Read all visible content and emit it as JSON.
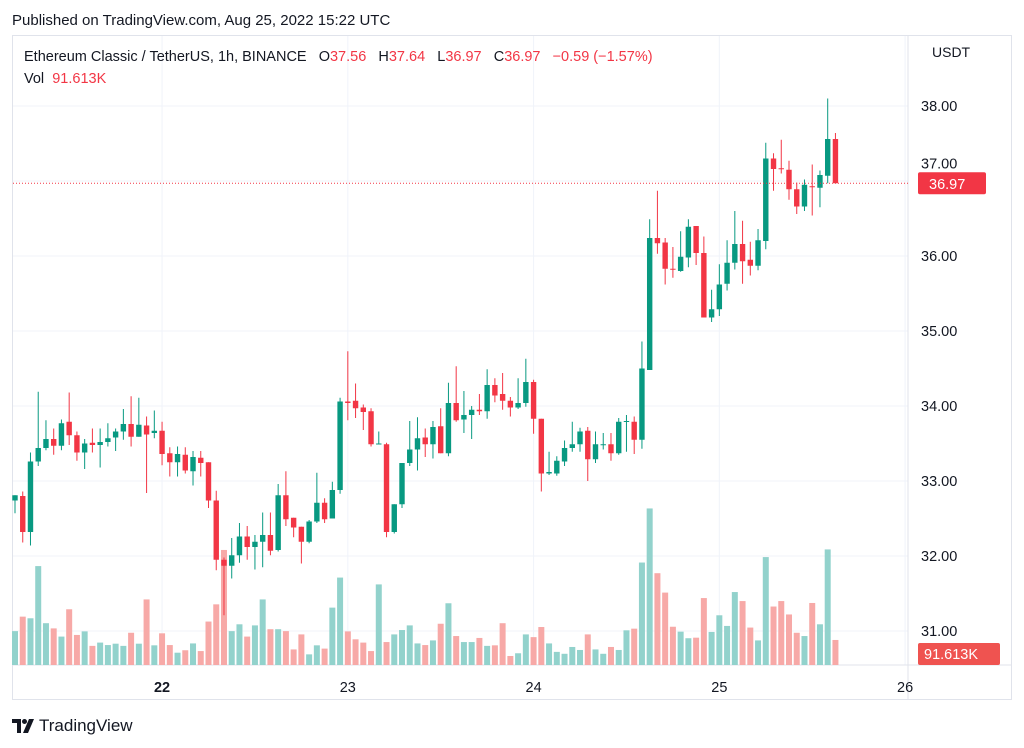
{
  "published": "Published on TradingView.com, Aug 25, 2022 15:22 UTC",
  "legend": {
    "symbol": "Ethereum Classic / TetherUS, 1h, BINANCE",
    "o_label": "O",
    "o": "37.56",
    "h_label": "H",
    "h": "37.64",
    "l_label": "L",
    "l": "36.97",
    "c_label": "C",
    "c": "36.97",
    "change": "−0.59 (−1.57%)",
    "vol_label": "Vol",
    "vol": "91.613K"
  },
  "footer": {
    "brand": "TradingView"
  },
  "chart_data": {
    "type": "candlestick",
    "title": "Ethereum Classic / TetherUS, 1h, BINANCE",
    "currency": "USDT",
    "ylim": [
      30.8,
      38.5
    ],
    "y_ticks": [
      "38.00",
      "37.00",
      "36.00",
      "35.00",
      "34.00",
      "33.00",
      "32.00",
      "31.00"
    ],
    "y_tick_values": [
      38,
      37,
      36,
      35,
      34,
      33,
      32,
      31
    ],
    "x_ticks": [
      {
        "label": "22",
        "bold": true
      },
      {
        "label": "23"
      },
      {
        "label": "24"
      },
      {
        "label": "25"
      },
      {
        "label": "26"
      }
    ],
    "interval": "1h",
    "grid": true,
    "last_price": "36.97",
    "last_volume": "91.613K",
    "colors": {
      "up": "#089981",
      "down": "#f23645",
      "vol_up": "#92d2cc",
      "vol_down": "#f7a9a7",
      "last_line": "#f23645"
    },
    "candles_ohlc": [
      [
        32.74,
        32.81,
        32.57,
        32.81
      ],
      [
        32.8,
        32.86,
        32.18,
        32.32
      ],
      [
        32.32,
        33.38,
        32.14,
        33.26
      ],
      [
        33.26,
        34.19,
        33.2,
        33.44
      ],
      [
        33.44,
        33.81,
        33.41,
        33.56
      ],
      [
        33.56,
        33.7,
        33.35,
        33.47
      ],
      [
        33.47,
        33.82,
        33.41,
        33.77
      ],
      [
        33.79,
        34.18,
        33.48,
        33.61
      ],
      [
        33.61,
        33.66,
        33.27,
        33.38
      ],
      [
        33.38,
        33.56,
        33.16,
        33.5
      ],
      [
        33.51,
        33.7,
        33.38,
        33.48
      ],
      [
        33.48,
        33.7,
        33.18,
        33.52
      ],
      [
        33.52,
        33.77,
        33.46,
        33.57
      ],
      [
        33.58,
        33.7,
        33.4,
        33.66
      ],
      [
        33.66,
        33.96,
        33.55,
        33.76
      ],
      [
        33.76,
        34.13,
        33.46,
        33.59
      ],
      [
        33.59,
        34.11,
        33.59,
        33.75
      ],
      [
        33.74,
        33.86,
        32.84,
        33.62
      ],
      [
        33.64,
        33.94,
        33.57,
        33.67
      ],
      [
        33.67,
        33.79,
        33.21,
        33.36
      ],
      [
        33.37,
        33.45,
        33.06,
        33.25
      ],
      [
        33.25,
        33.46,
        33.06,
        33.36
      ],
      [
        33.35,
        33.45,
        33.1,
        33.14
      ],
      [
        33.13,
        33.4,
        32.94,
        33.32
      ],
      [
        33.31,
        33.4,
        33.06,
        33.24
      ],
      [
        33.25,
        33.25,
        32.64,
        32.74
      ],
      [
        32.74,
        32.87,
        31.81,
        31.95
      ],
      [
        31.95,
        31.98,
        31.21,
        31.87
      ],
      [
        31.87,
        32.24,
        31.7,
        32.01
      ],
      [
        32.01,
        32.44,
        31.91,
        32.26
      ],
      [
        32.26,
        32.4,
        31.95,
        32.12
      ],
      [
        32.12,
        32.28,
        31.82,
        32.19
      ],
      [
        32.19,
        32.58,
        31.85,
        32.28
      ],
      [
        32.28,
        32.58,
        32.01,
        32.07
      ],
      [
        32.08,
        32.96,
        32.06,
        32.81
      ],
      [
        32.81,
        33.13,
        32.4,
        32.49
      ],
      [
        32.51,
        32.51,
        32.25,
        32.38
      ],
      [
        32.39,
        32.39,
        31.9,
        32.19
      ],
      [
        32.19,
        32.48,
        32.17,
        32.46
      ],
      [
        32.46,
        33.11,
        32.44,
        32.71
      ],
      [
        32.71,
        32.77,
        32.44,
        32.49
      ],
      [
        32.5,
        32.99,
        32.83,
        32.88
      ],
      [
        32.88,
        34.11,
        32.83,
        34.06
      ],
      [
        34.06,
        34.73,
        33.81,
        34.04
      ],
      [
        34.07,
        34.3,
        33.84,
        33.97
      ],
      [
        33.98,
        34.02,
        33.68,
        33.92
      ],
      [
        33.93,
        33.97,
        33.46,
        33.49
      ],
      [
        33.49,
        33.66,
        33.49,
        33.5
      ],
      [
        33.49,
        33.51,
        32.25,
        32.32
      ],
      [
        32.32,
        32.69,
        32.3,
        32.69
      ],
      [
        32.69,
        33.24,
        32.64,
        33.24
      ],
      [
        33.24,
        33.8,
        33.2,
        33.42
      ],
      [
        33.42,
        33.85,
        33.14,
        33.57
      ],
      [
        33.58,
        33.7,
        33.32,
        33.49
      ],
      [
        33.49,
        33.8,
        33.3,
        33.72
      ],
      [
        33.73,
        33.97,
        33.37,
        33.37
      ],
      [
        33.37,
        34.31,
        33.33,
        34.04
      ],
      [
        34.04,
        34.53,
        33.79,
        33.81
      ],
      [
        33.82,
        34.2,
        33.64,
        33.88
      ],
      [
        33.88,
        34.0,
        33.56,
        33.95
      ],
      [
        33.95,
        34.16,
        33.88,
        33.93
      ],
      [
        33.93,
        34.49,
        33.83,
        34.28
      ],
      [
        34.28,
        34.37,
        34.05,
        34.14
      ],
      [
        34.16,
        34.44,
        33.95,
        34.07
      ],
      [
        34.07,
        34.12,
        33.86,
        33.98
      ],
      [
        33.98,
        34.37,
        33.96,
        34.04
      ],
      [
        34.04,
        34.63,
        33.99,
        34.32
      ],
      [
        34.32,
        34.35,
        33.63,
        33.83
      ],
      [
        33.83,
        33.83,
        32.86,
        33.1
      ],
      [
        33.1,
        33.39,
        33.08,
        33.12
      ],
      [
        33.1,
        33.33,
        33.07,
        33.27
      ],
      [
        33.26,
        33.54,
        33.2,
        33.44
      ],
      [
        33.44,
        33.79,
        33.39,
        33.49
      ],
      [
        33.49,
        33.71,
        33.39,
        33.66
      ],
      [
        33.67,
        33.72,
        33.0,
        33.29
      ],
      [
        33.29,
        33.66,
        33.24,
        33.49
      ],
      [
        33.48,
        33.64,
        33.42,
        33.49
      ],
      [
        33.49,
        33.64,
        33.27,
        33.37
      ],
      [
        33.37,
        33.84,
        33.35,
        33.79
      ],
      [
        33.79,
        33.88,
        33.39,
        33.8
      ],
      [
        33.79,
        33.86,
        33.36,
        33.55
      ],
      [
        33.55,
        34.86,
        33.43,
        34.5
      ],
      [
        34.48,
        36.49,
        34.48,
        36.24
      ],
      [
        36.24,
        36.87,
        36.03,
        36.17
      ],
      [
        36.18,
        36.24,
        35.62,
        35.83
      ],
      [
        35.83,
        36.12,
        35.71,
        35.82
      ],
      [
        35.8,
        36.33,
        35.79,
        35.99
      ],
      [
        35.98,
        36.49,
        35.85,
        36.39
      ],
      [
        36.4,
        36.4,
        35.88,
        36.04
      ],
      [
        36.04,
        36.26,
        35.18,
        35.18
      ],
      [
        35.18,
        35.55,
        35.12,
        35.29
      ],
      [
        35.29,
        35.89,
        35.2,
        35.62
      ],
      [
        35.63,
        36.21,
        35.54,
        35.91
      ],
      [
        35.91,
        36.6,
        35.82,
        36.16
      ],
      [
        36.16,
        36.47,
        35.63,
        35.93
      ],
      [
        35.95,
        36.19,
        35.74,
        35.87
      ],
      [
        35.87,
        36.36,
        35.81,
        36.21
      ],
      [
        36.2,
        37.51,
        36.09,
        37.3
      ],
      [
        37.3,
        37.37,
        36.87,
        37.16
      ],
      [
        37.17,
        37.55,
        37.1,
        37.16
      ],
      [
        37.15,
        37.27,
        36.75,
        36.89
      ],
      [
        36.89,
        36.98,
        36.56,
        36.66
      ],
      [
        36.66,
        37.02,
        36.6,
        36.95
      ],
      [
        36.93,
        37.22,
        36.54,
        36.92
      ],
      [
        36.91,
        37.14,
        36.65,
        37.08
      ],
      [
        37.07,
        38.1,
        36.97,
        37.56
      ],
      [
        37.56,
        37.64,
        36.97,
        36.97
      ]
    ],
    "volume_k": [
      124,
      177,
      171,
      362,
      153,
      134,
      104,
      204,
      110,
      123,
      70,
      82,
      73,
      78,
      70,
      118,
      78,
      240,
      72,
      116,
      73,
      45,
      54,
      79,
      51,
      159,
      222,
      421,
      124,
      149,
      104,
      145,
      240,
      131,
      131,
      124,
      57,
      112,
      39,
      72,
      60,
      210,
      320,
      123,
      94,
      82,
      51,
      295,
      84,
      112,
      128,
      145,
      79,
      73,
      90,
      151,
      226,
      106,
      84,
      84,
      99,
      70,
      72,
      153,
      33,
      43,
      112,
      102,
      139,
      79,
      48,
      41,
      66,
      55,
      112,
      57,
      41,
      66,
      55,
      127,
      133,
      375,
      573,
      336,
      265,
      140,
      122,
      98,
      100,
      245,
      121,
      182,
      143,
      267,
      234,
      137,
      90,
      395,
      214,
      234,
      185,
      118,
      106,
      227,
      149,
      423,
      91.613
    ]
  }
}
